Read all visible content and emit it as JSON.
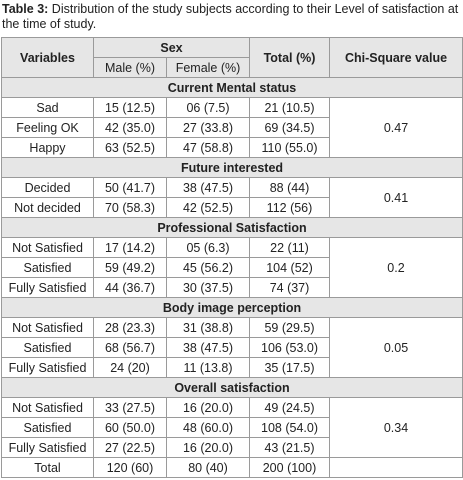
{
  "caption": {
    "label": "Table 3:",
    "text": "Distribution of the study subjects according to their Level of satisfaction at the time of study."
  },
  "table": {
    "header": {
      "variables": "Variables",
      "sex": "Sex",
      "male": "Male (%)",
      "female": "Female (%)",
      "total": "Total (%)",
      "chi": "Chi-Square value"
    },
    "sections": [
      {
        "title": "Current Mental status",
        "chi": "0.47",
        "rows": [
          [
            "Sad",
            "15 (12.5)",
            "06 (7.5)",
            "21 (10.5)"
          ],
          [
            "Feeling OK",
            "42 (35.0)",
            "27 (33.8)",
            "69 (34.5)"
          ],
          [
            "Happy",
            "63 (52.5)",
            "47 (58.8)",
            "110 (55.0)"
          ]
        ]
      },
      {
        "title": "Future interested",
        "chi": "0.41",
        "rows": [
          [
            "Decided",
            "50 (41.7)",
            "38 (47.5)",
            "88 (44)"
          ],
          [
            "Not decided",
            "70 (58.3)",
            "42 (52.5)",
            "112 (56)"
          ]
        ]
      },
      {
        "title": "Professional Satisfaction",
        "chi": "0.2",
        "rows": [
          [
            "Not Satisfied",
            "17 (14.2)",
            "05 (6.3)",
            "22 (11)"
          ],
          [
            "Satisfied",
            "59 (49.2)",
            "45 (56.2)",
            "104 (52)"
          ],
          [
            "Fully Satisfied",
            "44 (36.7)",
            "30 (37.5)",
            "74 (37)"
          ]
        ]
      },
      {
        "title": "Body image perception",
        "chi": "0.05",
        "rows": [
          [
            "Not Satisfied",
            "28  (23.3)",
            "31 (38.8)",
            "59 (29.5)"
          ],
          [
            "Satisfied",
            "68 (56.7)",
            "38 (47.5)",
            "106 (53.0)"
          ],
          [
            "Fully Satisfied",
            "24 (20)",
            "11 (13.8)",
            "35 (17.5)"
          ]
        ]
      },
      {
        "title": "Overall satisfaction",
        "chi": "0.34",
        "rows": [
          [
            "Not Satisfied",
            "33 (27.5)",
            "16 (20.0)",
            "49 (24.5)"
          ],
          [
            "Satisfied",
            "60 (50.0)",
            "48 (60.0)",
            "108 (54.0)"
          ],
          [
            "Fully Satisfied",
            "27 (22.5)",
            "16 (20.0)",
            "43 (21.5)"
          ]
        ]
      }
    ],
    "total_row": [
      "Total",
      "120 (60)",
      "80 (40)",
      "200 (100)"
    ]
  }
}
